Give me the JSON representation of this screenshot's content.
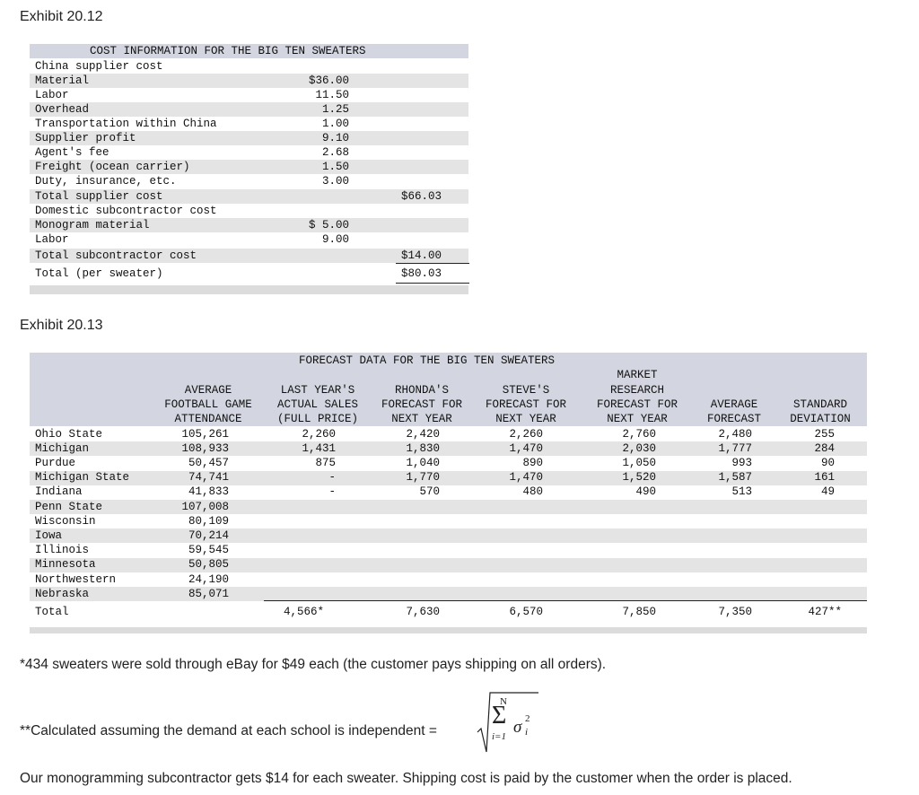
{
  "exhibit1": {
    "title": "Exhibit 20.12",
    "table_title": "COST INFORMATION FOR THE BIG TEN SWEATERS",
    "rows": [
      {
        "label": "China supplier cost",
        "v1": "",
        "v2": ""
      },
      {
        "label": "Material",
        "v1": "$36.00",
        "v2": ""
      },
      {
        "label": "Labor",
        "v1": "11.50",
        "v2": ""
      },
      {
        "label": "Overhead",
        "v1": "1.25",
        "v2": ""
      },
      {
        "label": "Transportation within China",
        "v1": "1.00",
        "v2": ""
      },
      {
        "label": "Supplier profit",
        "v1": "9.10",
        "v2": ""
      },
      {
        "label": "Agent's fee",
        "v1": "2.68",
        "v2": ""
      },
      {
        "label": "Freight (ocean carrier)",
        "v1": "1.50",
        "v2": ""
      },
      {
        "label": "Duty, insurance, etc.",
        "v1": "3.00",
        "v2": ""
      },
      {
        "label": "Total supplier cost",
        "v1": "",
        "v2": "$66.03"
      },
      {
        "label": "Domestic subcontractor cost",
        "v1": "",
        "v2": ""
      },
      {
        "label": "Monogram material",
        "v1": "$ 5.00",
        "v2": ""
      },
      {
        "label": "Labor",
        "v1": "9.00",
        "v2": ""
      },
      {
        "label": "Total subcontractor cost",
        "v1": "",
        "v2": "$14.00"
      },
      {
        "label": "Total (per sweater)",
        "v1": "",
        "v2": "$80.03"
      }
    ]
  },
  "exhibit2": {
    "title": "Exhibit 20.13",
    "table_title": "FORECAST DATA FOR THE BIG TEN SWEATERS",
    "headers": [
      [
        "AVERAGE",
        "FOOTBALL GAME",
        "ATTENDANCE"
      ],
      [
        "LAST YEAR'S",
        "ACTUAL SALES",
        "(FULL PRICE)"
      ],
      [
        "RHONDA'S",
        "FORECAST FOR",
        "NEXT YEAR"
      ],
      [
        "STEVE'S",
        "FORECAST FOR",
        "NEXT YEAR"
      ],
      [
        "MARKET",
        "RESEARCH",
        "FORECAST FOR",
        "NEXT YEAR"
      ],
      [
        "AVERAGE",
        "FORECAST"
      ],
      [
        "STANDARD",
        "DEVIATION"
      ]
    ],
    "rows": [
      {
        "school": "Ohio State",
        "c": [
          "105,261",
          "2,260",
          "2,420",
          "2,260",
          "2,760",
          "2,480",
          "255"
        ]
      },
      {
        "school": "Michigan",
        "c": [
          "108,933",
          "1,431",
          "1,830",
          "1,470",
          "2,030",
          "1,777",
          "284"
        ]
      },
      {
        "school": "Purdue",
        "c": [
          "50,457",
          "875",
          "1,040",
          "890",
          "1,050",
          "993",
          "90"
        ]
      },
      {
        "school": "Michigan State",
        "c": [
          "74,741",
          "-",
          "1,770",
          "1,470",
          "1,520",
          "1,587",
          "161"
        ]
      },
      {
        "school": "Indiana",
        "c": [
          "41,833",
          "-",
          "570",
          "480",
          "490",
          "513",
          "49"
        ]
      },
      {
        "school": "Penn State",
        "c": [
          "107,008",
          "",
          "",
          "",
          "",
          "",
          ""
        ]
      },
      {
        "school": "Wisconsin",
        "c": [
          "80,109",
          "",
          "",
          "",
          "",
          "",
          ""
        ]
      },
      {
        "school": "Iowa",
        "c": [
          "70,214",
          "",
          "",
          "",
          "",
          "",
          ""
        ]
      },
      {
        "school": "Illinois",
        "c": [
          "59,545",
          "",
          "",
          "",
          "",
          "",
          ""
        ]
      },
      {
        "school": "Minnesota",
        "c": [
          "50,805",
          "",
          "",
          "",
          "",
          "",
          ""
        ]
      },
      {
        "school": "Northwestern",
        "c": [
          "24,190",
          "",
          "",
          "",
          "",
          "",
          ""
        ]
      },
      {
        "school": "Nebraska",
        "c": [
          "85,071",
          "",
          "",
          "",
          "",
          "",
          ""
        ]
      }
    ],
    "total": {
      "label": "Total",
      "c": [
        "",
        "4,566*",
        "7,630",
        "6,570",
        "7,850",
        "7,350",
        "427**"
      ]
    }
  },
  "notes": {
    "note1": "*434 sweaters were sold through eBay for $49 each (the customer pays shipping on all orders).",
    "note2": "**Calculated assuming the demand at each school is independent =",
    "formula": {
      "upper": "N",
      "sum": "Σ",
      "sigma": "σ",
      "sub": "i",
      "sup": "2",
      "lower": "i=1"
    },
    "note3": "Our monogramming subcontractor gets $14 for each sweater. Shipping cost is paid by the customer when the order is placed."
  }
}
